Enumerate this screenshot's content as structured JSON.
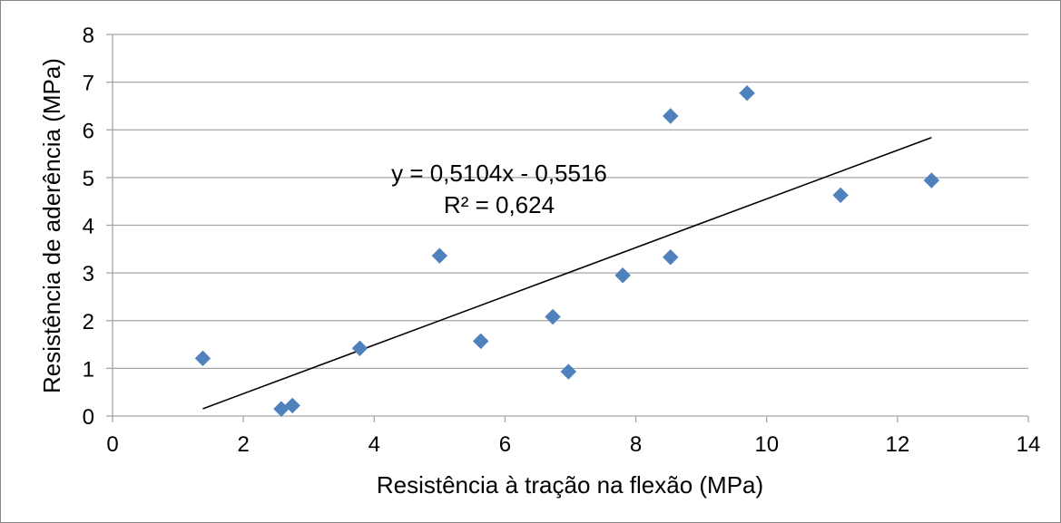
{
  "chart_data": {
    "type": "scatter",
    "title": "",
    "xlabel": "Resistência à tração na flexão (MPa)",
    "ylabel": "Resistência de aderência (MPa)",
    "xlim": [
      0,
      14
    ],
    "ylim": [
      0,
      8
    ],
    "xticks": [
      0,
      2,
      4,
      6,
      8,
      10,
      12,
      14
    ],
    "yticks": [
      0,
      1,
      2,
      3,
      4,
      5,
      6,
      7,
      8
    ],
    "grid": "horizontal",
    "legend": "none",
    "marker": "diamond",
    "marker_color": "#4F81BD",
    "trendline_color": "#000000",
    "grid_color": "#A6A6A6",
    "x": [
      1.38,
      2.58,
      2.75,
      3.78,
      5.0,
      5.63,
      6.73,
      6.97,
      7.8,
      8.53,
      8.53,
      9.7,
      11.13,
      12.52
    ],
    "y": [
      1.21,
      0.15,
      0.22,
      1.42,
      3.36,
      1.57,
      2.08,
      0.93,
      2.95,
      3.33,
      6.29,
      6.77,
      4.63,
      4.94
    ],
    "trendline": {
      "type": "linear",
      "slope": 0.5104,
      "intercept": -0.5516,
      "x_range": [
        1.38,
        12.52
      ],
      "equation_label": "y = 0,5104x - 0,5516",
      "r2_label": "R² = 0,624"
    }
  }
}
